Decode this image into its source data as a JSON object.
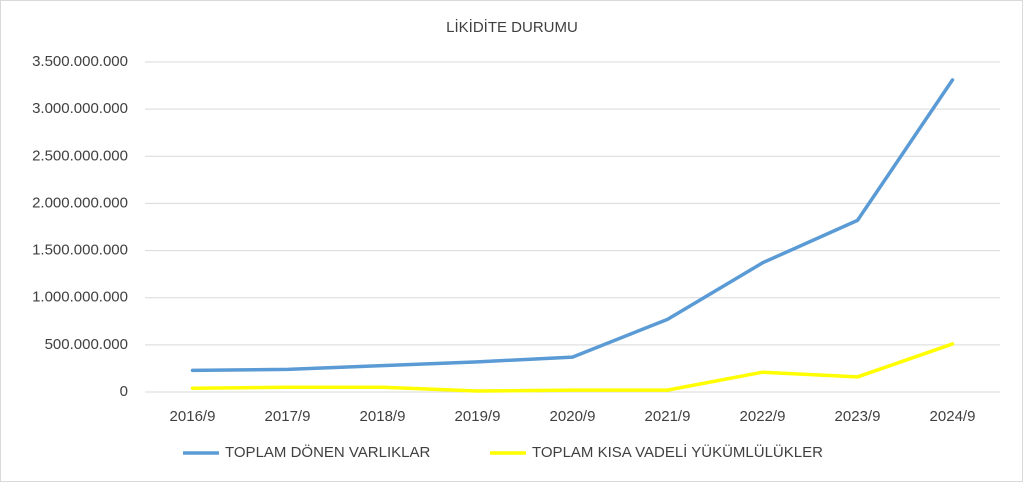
{
  "chart_data": {
    "type": "line",
    "title": "LİKİDİTE DURUMU",
    "categories": [
      "2016/9",
      "2017/9",
      "2018/9",
      "2019/9",
      "2020/9",
      "2021/9",
      "2022/9",
      "2023/9",
      "2024/9"
    ],
    "series": [
      {
        "name": "TOPLAM DÖNEN VARLIKLAR",
        "color": "#5b9bd5",
        "values": [
          230000000,
          240000000,
          280000000,
          320000000,
          370000000,
          770000000,
          1370000000,
          1820000000,
          3310000000
        ]
      },
      {
        "name": "TOPLAM KISA VADELİ YÜKÜMLÜLÜKLER",
        "color": "#ffff00",
        "values": [
          40000000,
          50000000,
          50000000,
          10000000,
          20000000,
          20000000,
          210000000,
          160000000,
          510000000
        ]
      }
    ],
    "ylim": [
      0,
      3500000000
    ],
    "yticks": [
      0,
      {
        "value": 500000000,
        "label": "500.000.000"
      },
      {
        "value": 1000000000,
        "label": "1.000.000.000"
      },
      {
        "value": 1500000000,
        "label": "1.500.000.000"
      },
      {
        "value": 2000000000,
        "label": "2.000.000.000"
      },
      {
        "value": 2500000000,
        "label": "2.500.000.000"
      },
      {
        "value": 3000000000,
        "label": "3.000.000.000"
      },
      {
        "value": 3500000000,
        "label": "3.500.000.000"
      }
    ],
    "grid": true,
    "legend": "bottom"
  }
}
